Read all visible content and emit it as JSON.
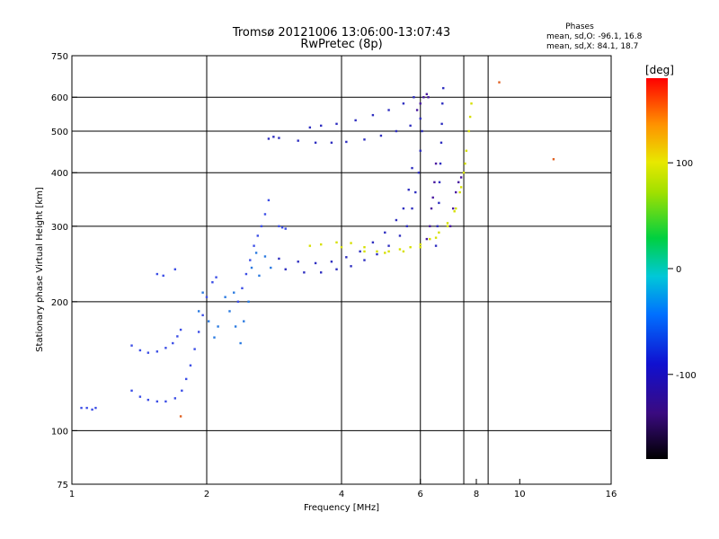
{
  "chart_data": {
    "type": "scatter",
    "title": "Tromsø 20121006 13:06:00-13:07:43",
    "subtitle": "RwPretec (8p)",
    "xlabel": "Frequency [MHz]",
    "ylabel": "Stationary phase Virtual Height [km]",
    "x_scale": "log2",
    "y_scale": "log",
    "xlim": [
      1,
      16
    ],
    "ylim": [
      75,
      750
    ],
    "x_ticks": [
      1,
      2,
      4,
      6,
      8,
      10,
      16
    ],
    "y_ticks": [
      75,
      100,
      200,
      300,
      400,
      500,
      600,
      750
    ],
    "x_gridlines": [
      2,
      4,
      6,
      7.5,
      8.5
    ],
    "y_gridlines": [
      100,
      200,
      300,
      400,
      500,
      600
    ],
    "grid": true,
    "legend": {
      "title": "Phases",
      "lines": [
        "mean, sd,O: -96.1, 16.8",
        "mean, sd,X:  84.1, 18.7"
      ],
      "position": "top-right"
    },
    "colorbar": {
      "label": "[deg]",
      "ticks": [
        100,
        0,
        -100
      ],
      "range": [
        -180,
        180
      ],
      "colormap": "rainbow",
      "position": "right"
    },
    "series": [
      {
        "color": "#3c4ee6",
        "points": [
          [
            1.05,
            113
          ],
          [
            1.08,
            113
          ],
          [
            1.11,
            112
          ],
          [
            1.13,
            113
          ],
          [
            1.36,
            158
          ],
          [
            1.42,
            154
          ],
          [
            1.48,
            152
          ],
          [
            1.55,
            153
          ],
          [
            1.62,
            156
          ],
          [
            1.68,
            160
          ],
          [
            1.72,
            166
          ],
          [
            1.75,
            172
          ],
          [
            1.36,
            124
          ],
          [
            1.42,
            120
          ],
          [
            1.48,
            118
          ],
          [
            1.55,
            117
          ],
          [
            1.62,
            117
          ],
          [
            1.7,
            119
          ],
          [
            1.76,
            124
          ],
          [
            1.8,
            132
          ],
          [
            1.84,
            142
          ],
          [
            1.88,
            155
          ],
          [
            1.92,
            170
          ],
          [
            1.96,
            186
          ],
          [
            2.0,
            205
          ],
          [
            2.06,
            222
          ],
          [
            2.1,
            228
          ],
          [
            1.55,
            232
          ],
          [
            1.6,
            230
          ],
          [
            1.7,
            238
          ],
          [
            2.35,
            200
          ],
          [
            2.4,
            215
          ],
          [
            2.45,
            232
          ],
          [
            2.5,
            250
          ],
          [
            2.55,
            270
          ],
          [
            2.6,
            285
          ],
          [
            2.65,
            300
          ],
          [
            2.7,
            320
          ],
          [
            2.75,
            345
          ],
          [
            2.9,
            300
          ],
          [
            2.95,
            298
          ],
          [
            3.0,
            296
          ]
        ]
      },
      {
        "color": "#2a7ae0",
        "points": [
          [
            1.92,
            190
          ],
          [
            1.96,
            210
          ],
          [
            2.02,
            180
          ],
          [
            2.08,
            165
          ],
          [
            2.12,
            175
          ],
          [
            2.2,
            205
          ],
          [
            2.25,
            190
          ],
          [
            2.3,
            210
          ],
          [
            2.32,
            175
          ],
          [
            2.38,
            160
          ],
          [
            2.42,
            180
          ],
          [
            2.48,
            200
          ],
          [
            2.52,
            240
          ],
          [
            2.58,
            260
          ],
          [
            2.62,
            230
          ],
          [
            2.7,
            255
          ],
          [
            2.78,
            240
          ]
        ]
      },
      {
        "color": "#2f2fc0",
        "points": [
          [
            2.75,
            480
          ],
          [
            2.82,
            485
          ],
          [
            2.9,
            482
          ],
          [
            3.2,
            475
          ],
          [
            3.5,
            470
          ],
          [
            3.8,
            470
          ],
          [
            4.1,
            472
          ],
          [
            4.5,
            478
          ],
          [
            4.9,
            488
          ],
          [
            5.3,
            500
          ],
          [
            5.7,
            515
          ],
          [
            6.0,
            535
          ],
          [
            3.4,
            510
          ],
          [
            3.6,
            515
          ],
          [
            3.9,
            520
          ],
          [
            4.3,
            530
          ],
          [
            4.7,
            545
          ],
          [
            5.1,
            560
          ],
          [
            5.5,
            580
          ],
          [
            5.8,
            600
          ],
          [
            3.0,
            238
          ],
          [
            3.3,
            234
          ],
          [
            3.6,
            234
          ],
          [
            3.9,
            238
          ],
          [
            4.2,
            242
          ],
          [
            4.5,
            250
          ],
          [
            4.8,
            258
          ],
          [
            5.1,
            270
          ],
          [
            5.4,
            285
          ],
          [
            5.6,
            300
          ],
          [
            5.75,
            330
          ],
          [
            5.85,
            360
          ],
          [
            5.95,
            400
          ],
          [
            6.0,
            450
          ],
          [
            6.05,
            500
          ],
          [
            2.9,
            252
          ],
          [
            3.2,
            248
          ],
          [
            3.5,
            246
          ],
          [
            3.8,
            248
          ],
          [
            4.1,
            254
          ],
          [
            4.4,
            262
          ],
          [
            4.7,
            275
          ],
          [
            5.0,
            290
          ],
          [
            5.3,
            310
          ],
          [
            5.5,
            330
          ],
          [
            5.65,
            365
          ],
          [
            5.75,
            410
          ],
          [
            6.5,
            270
          ],
          [
            6.55,
            300
          ],
          [
            6.6,
            340
          ],
          [
            6.62,
            380
          ],
          [
            6.65,
            420
          ],
          [
            6.68,
            470
          ],
          [
            6.7,
            520
          ],
          [
            6.72,
            580
          ],
          [
            6.75,
            630
          ]
        ]
      },
      {
        "color": "#4a1aa0",
        "points": [
          [
            6.2,
            280
          ],
          [
            6.3,
            300
          ],
          [
            6.35,
            330
          ],
          [
            6.4,
            350
          ],
          [
            6.45,
            380
          ],
          [
            6.5,
            420
          ],
          [
            5.9,
            560
          ],
          [
            6.0,
            580
          ],
          [
            6.1,
            600
          ],
          [
            6.2,
            610
          ],
          [
            6.25,
            600
          ],
          [
            7.0,
            300
          ],
          [
            7.1,
            330
          ],
          [
            7.2,
            360
          ],
          [
            7.3,
            380
          ],
          [
            7.4,
            390
          ]
        ]
      },
      {
        "color": "#d6e000",
        "points": [
          [
            3.4,
            270
          ],
          [
            3.6,
            272
          ],
          [
            3.9,
            275
          ],
          [
            4.2,
            274
          ],
          [
            4.5,
            268
          ],
          [
            4.8,
            262
          ],
          [
            5.1,
            262
          ],
          [
            5.4,
            265
          ],
          [
            5.7,
            268
          ],
          [
            6.0,
            272
          ],
          [
            6.3,
            280
          ],
          [
            6.6,
            290
          ],
          [
            6.9,
            305
          ],
          [
            7.15,
            325
          ],
          [
            7.35,
            360
          ],
          [
            7.5,
            400
          ],
          [
            7.6,
            450
          ],
          [
            7.7,
            500
          ],
          [
            7.75,
            540
          ],
          [
            7.8,
            580
          ],
          [
            4.0,
            268
          ],
          [
            4.5,
            262
          ],
          [
            5.0,
            260
          ],
          [
            5.5,
            262
          ],
          [
            6.0,
            268
          ],
          [
            6.5,
            282
          ],
          [
            6.9,
            300
          ],
          [
            7.2,
            330
          ],
          [
            7.4,
            370
          ],
          [
            7.55,
            420
          ]
        ]
      },
      {
        "color": "#e06020",
        "points": [
          [
            9.0,
            650
          ],
          [
            11.9,
            430
          ],
          [
            1.75,
            108
          ]
        ]
      }
    ]
  }
}
